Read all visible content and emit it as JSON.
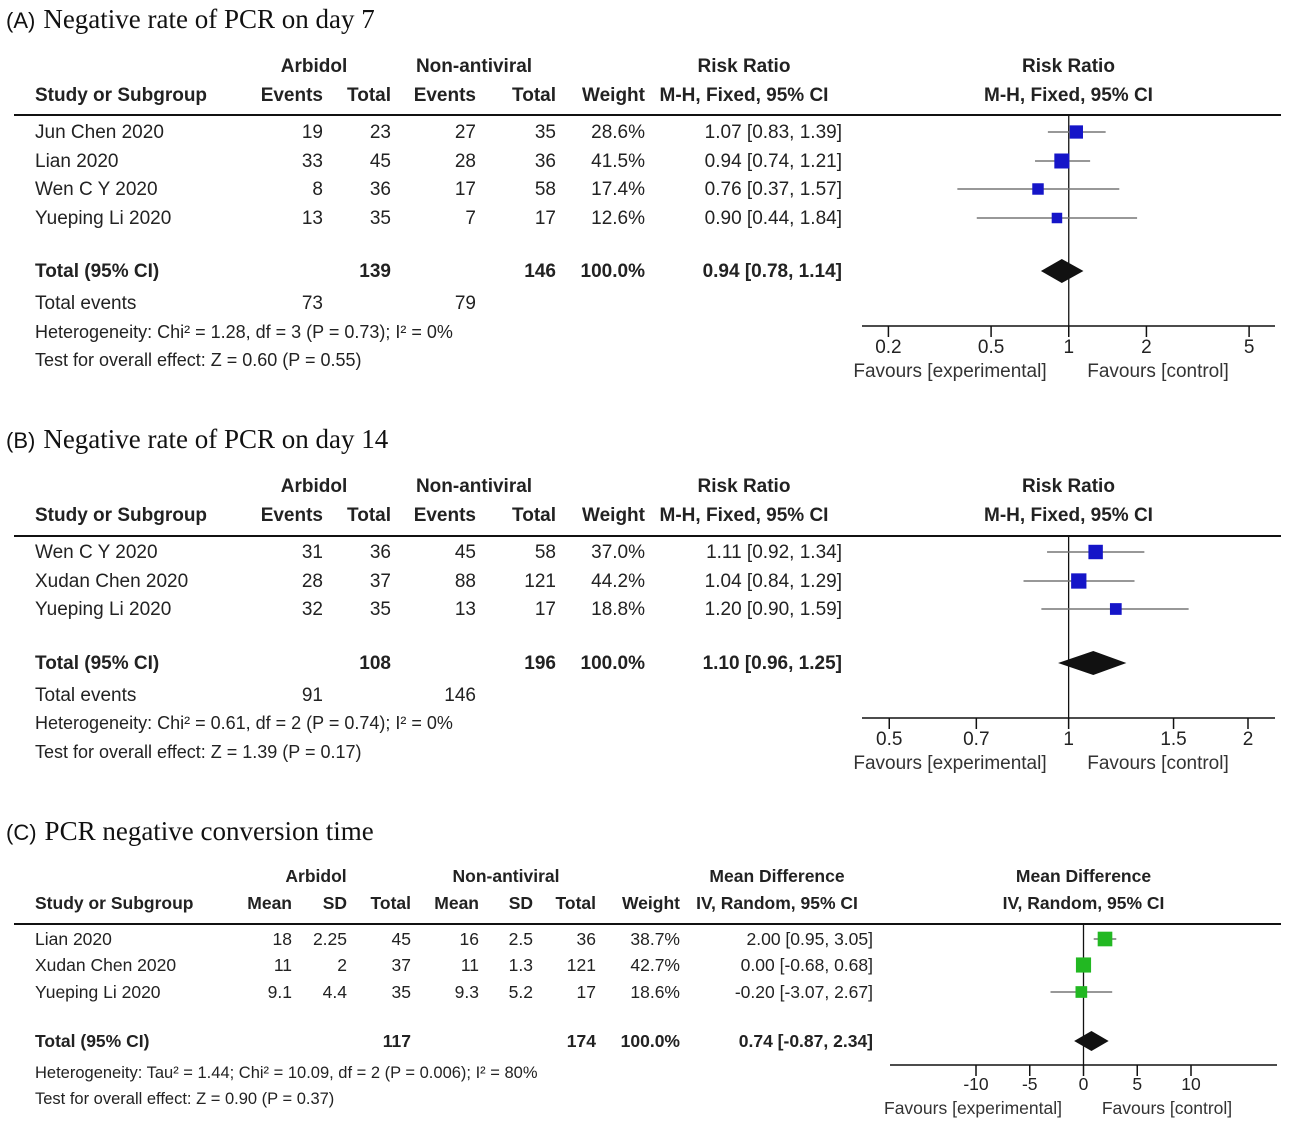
{
  "colors": {
    "mark_ab": "#1515c8",
    "mark_c": "#22b822",
    "ink": "#111111",
    "text": "#222222",
    "ci_gray": "#777777"
  },
  "chart_data": [
    {
      "type": "table",
      "panel_label": "(A)",
      "title": "Negative rate of PCR on day 7",
      "measure": "Risk Ratio",
      "method": "M-H, Fixed, 95% CI",
      "group1": "Arbidol",
      "group2": "Non-antiviral",
      "columns": [
        "Study or Subgroup",
        "Events",
        "Total",
        "Events",
        "Total",
        "Weight",
        "M-H, Fixed, 95% CI"
      ],
      "studies": [
        {
          "name": "Jun Chen 2020",
          "cells": [
            "19",
            "23",
            "27",
            "35"
          ],
          "weight": "28.6%",
          "ci_text": "1.07 [0.83, 1.39]",
          "est": 1.07,
          "lo": 0.83,
          "hi": 1.39,
          "w": 28.6
        },
        {
          "name": "Lian 2020",
          "cells": [
            "33",
            "45",
            "28",
            "36"
          ],
          "weight": "41.5%",
          "ci_text": "0.94 [0.74, 1.21]",
          "est": 0.94,
          "lo": 0.74,
          "hi": 1.21,
          "w": 41.5
        },
        {
          "name": "Wen C Y  2020",
          "cells": [
            "8",
            "36",
            "17",
            "58"
          ],
          "weight": "17.4%",
          "ci_text": "0.76 [0.37, 1.57]",
          "est": 0.76,
          "lo": 0.37,
          "hi": 1.57,
          "w": 17.4
        },
        {
          "name": "Yueping Li 2020",
          "cells": [
            "13",
            "35",
            "7",
            "17"
          ],
          "weight": "12.6%",
          "ci_text": "0.90 [0.44, 1.84]",
          "est": 0.9,
          "lo": 0.44,
          "hi": 1.84,
          "w": 12.6
        }
      ],
      "total": {
        "label": "Total (95% CI)",
        "cells": [
          "",
          "139",
          "",
          "146"
        ],
        "weight": "100.0%",
        "ci_text": "0.94 [0.78, 1.14]",
        "est": 0.94,
        "lo": 0.78,
        "hi": 1.14
      },
      "total_events": {
        "label": "Total events",
        "cells": [
          "73",
          "",
          "79",
          ""
        ]
      },
      "heterogeneity": "Heterogeneity: Chi² = 1.28, df = 3 (P = 0.73); I² = 0%",
      "overall": "Test for overall effect: Z = 0.60 (P = 0.55)",
      "scale": "log",
      "xlim": [
        0.158,
        6.3
      ],
      "null_value": 1,
      "ticks": [
        0.2,
        0.5,
        1,
        2,
        5
      ],
      "tick_labels": [
        "0.2",
        "0.5",
        "1",
        "2",
        "5"
      ],
      "favours_left": "Favours [experimental]",
      "favours_right": "Favours [control]",
      "color_key": "mark_ab"
    },
    {
      "type": "table",
      "panel_label": "(B)",
      "title": "Negative rate of PCR on day 14",
      "measure": "Risk Ratio",
      "method": "M-H, Fixed, 95% CI",
      "group1": "Arbidol",
      "group2": "Non-antiviral",
      "columns": [
        "Study or Subgroup",
        "Events",
        "Total",
        "Events",
        "Total",
        "Weight",
        "M-H, Fixed, 95% CI"
      ],
      "studies": [
        {
          "name": "Wen C Y  2020",
          "cells": [
            "31",
            "36",
            "45",
            "58"
          ],
          "weight": "37.0%",
          "ci_text": "1.11 [0.92, 1.34]",
          "est": 1.11,
          "lo": 0.92,
          "hi": 1.34,
          "w": 37.0
        },
        {
          "name": "Xudan Chen 2020",
          "cells": [
            "28",
            "37",
            "88",
            "121"
          ],
          "weight": "44.2%",
          "ci_text": "1.04 [0.84, 1.29]",
          "est": 1.04,
          "lo": 0.84,
          "hi": 1.29,
          "w": 44.2
        },
        {
          "name": "Yueping Li 2020",
          "cells": [
            "32",
            "35",
            "13",
            "17"
          ],
          "weight": "18.8%",
          "ci_text": "1.20 [0.90, 1.59]",
          "est": 1.2,
          "lo": 0.9,
          "hi": 1.59,
          "w": 18.8
        }
      ],
      "total": {
        "label": "Total (95% CI)",
        "cells": [
          "",
          "108",
          "",
          "196"
        ],
        "weight": "100.0%",
        "ci_text": "1.10 [0.96, 1.25]",
        "est": 1.1,
        "lo": 0.96,
        "hi": 1.25
      },
      "total_events": {
        "label": "Total events",
        "cells": [
          "91",
          "",
          "146",
          ""
        ]
      },
      "heterogeneity": "Heterogeneity: Chi² = 0.61, df = 2 (P = 0.74); I² = 0%",
      "overall": "Test for overall effect: Z = 1.39 (P = 0.17)",
      "scale": "log",
      "xlim": [
        0.45,
        2.22
      ],
      "null_value": 1,
      "ticks": [
        0.5,
        0.7,
        1,
        1.5,
        2
      ],
      "tick_labels": [
        "0.5",
        "0.7",
        "1",
        "1.5",
        "2"
      ],
      "favours_left": "Favours [experimental]",
      "favours_right": "Favours [control]",
      "color_key": "mark_ab"
    },
    {
      "type": "table",
      "panel_label": "(C)",
      "title": "PCR negative conversion time",
      "measure": "Mean Difference",
      "method": "IV, Random, 95% CI",
      "group1": "Arbidol",
      "group2": "Non-antiviral",
      "columns": [
        "Study or Subgroup",
        "Mean",
        "SD",
        "Total",
        "Mean",
        "SD",
        "Total",
        "Weight",
        "IV, Random, 95% CI"
      ],
      "studies": [
        {
          "name": "Lian 2020",
          "cells": [
            "18",
            "2.25",
            "45",
            "16",
            "2.5",
            "36"
          ],
          "weight": "38.7%",
          "ci_text": "2.00 [0.95, 3.05]",
          "est": 2.0,
          "lo": 0.95,
          "hi": 3.05,
          "w": 38.7
        },
        {
          "name": "Xudan Chen 2020",
          "cells": [
            "11",
            "2",
            "37",
            "11",
            "1.3",
            "121"
          ],
          "weight": "42.7%",
          "ci_text": "0.00 [-0.68, 0.68]",
          "est": 0.0,
          "lo": -0.68,
          "hi": 0.68,
          "w": 42.7
        },
        {
          "name": "Yueping Li 2020",
          "cells": [
            "9.1",
            "4.4",
            "35",
            "9.3",
            "5.2",
            "17"
          ],
          "weight": "18.6%",
          "ci_text": "-0.20 [-3.07, 2.67]",
          "est": -0.2,
          "lo": -3.07,
          "hi": 2.67,
          "w": 18.6
        }
      ],
      "total": {
        "label": "Total (95% CI)",
        "cells": [
          "",
          "",
          "117",
          "",
          "",
          "174"
        ],
        "weight": "100.0%",
        "ci_text": "0.74 [-0.87, 2.34]",
        "est": 0.74,
        "lo": -0.87,
        "hi": 2.34
      },
      "heterogeneity": "Heterogeneity: Tau² = 1.44; Chi² = 10.09, df = 2 (P = 0.006); I² = 80%",
      "overall": "Test for overall effect: Z = 0.90 (P = 0.37)",
      "scale": "linear",
      "xlim": [
        -18,
        18
      ],
      "null_value": 0,
      "ticks": [
        -10,
        -5,
        0,
        5,
        10
      ],
      "tick_labels": [
        "-10",
        "-5",
        "0",
        "5",
        "10"
      ],
      "favours_left": "Favours [experimental]",
      "favours_right": "Favours [control]",
      "color_key": "mark_c"
    }
  ]
}
